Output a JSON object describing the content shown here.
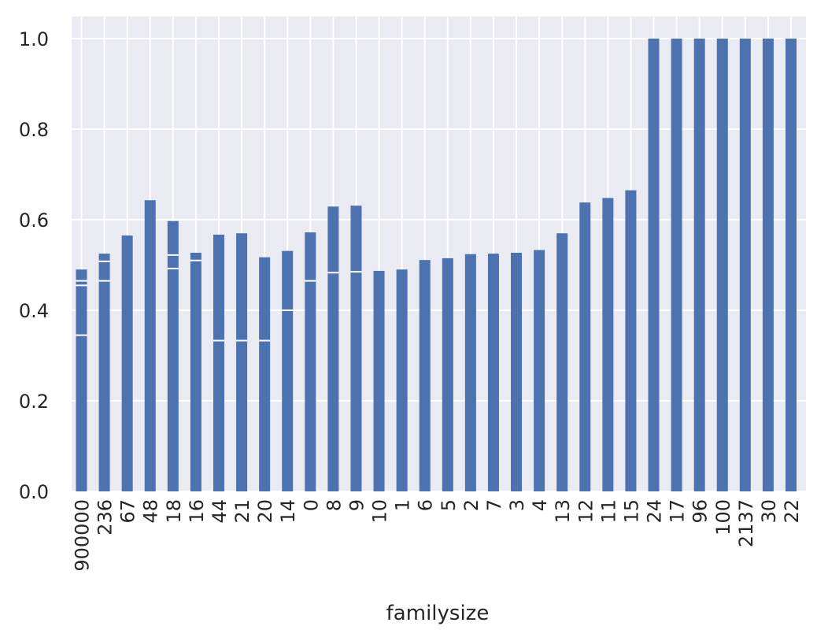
{
  "chart_data": {
    "type": "bar",
    "title": "",
    "xlabel": "familysize",
    "ylabel": "",
    "ylim": [
      0,
      1.05
    ],
    "yticks": [
      "0.0",
      "0.2",
      "0.4",
      "0.6",
      "0.8",
      "1.0"
    ],
    "ytick_values": [
      0,
      0.2,
      0.4,
      0.6,
      0.8,
      1.0
    ],
    "grid": true,
    "legend": "none",
    "colors": {
      "bar": "#4c72b0",
      "background": "#eaeaf2",
      "grid": "#ffffff",
      "separator": "#ffffff"
    },
    "categories": [
      "900000",
      "236",
      "67",
      "48",
      "18",
      "16",
      "44",
      "21",
      "20",
      "14",
      "0",
      "8",
      "9",
      "10",
      "1",
      "6",
      "5",
      "2",
      "7",
      "3",
      "4",
      "13",
      "12",
      "11",
      "15",
      "24",
      "17",
      "96",
      "100",
      "2137",
      "30",
      "22"
    ],
    "values": [
      0.49,
      0.525,
      0.565,
      0.643,
      0.597,
      0.527,
      0.567,
      0.57,
      0.517,
      0.531,
      0.572,
      0.629,
      0.631,
      0.487,
      0.49,
      0.511,
      0.515,
      0.524,
      0.525,
      0.527,
      0.533,
      0.57,
      0.638,
      0.648,
      0.665,
      1.0,
      1.0,
      1.0,
      1.0,
      1.0,
      1.0,
      1.0
    ],
    "segment_boundaries": [
      [
        0.345,
        0.455,
        0.465
      ],
      [
        0.465,
        0.508
      ],
      [],
      [],
      [
        0.492,
        0.522
      ],
      [
        0.51
      ],
      [
        0.333
      ],
      [
        0.333
      ],
      [
        0.333
      ],
      [
        0.4
      ],
      [
        0.465
      ],
      [
        0.483
      ],
      [
        0.485
      ],
      [],
      [],
      [],
      [],
      [],
      [],
      [],
      [],
      [],
      [],
      [],
      [],
      [],
      [],
      [],
      [],
      [],
      [],
      []
    ]
  }
}
